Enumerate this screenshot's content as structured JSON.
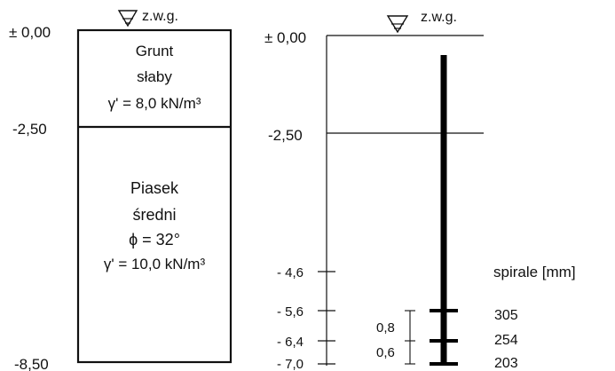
{
  "left_profile": {
    "water_table_label": "z.w.g.",
    "levels": [
      "± 0,00",
      "-2,50",
      "-8,50"
    ],
    "layer1": {
      "name_line1": "Grunt",
      "name_line2": "słaby",
      "gamma": "γ' = 8,0 kN/m³"
    },
    "layer2": {
      "name_line1": "Piasek",
      "name_line2": "średni",
      "phi": "ϕ = 32°",
      "gamma": "γ' = 10,0 kN/m³"
    }
  },
  "right_profile": {
    "water_table_label": "z.w.g.",
    "levels": [
      "± 0,00",
      "-2,50",
      "- 4,6",
      "- 5,6",
      "- 6,4",
      "- 7,0"
    ],
    "spirals_header": "spirale [mm]",
    "spirals": [
      "305",
      "254",
      "203"
    ],
    "spacings": [
      "0,8",
      "0,6"
    ]
  }
}
